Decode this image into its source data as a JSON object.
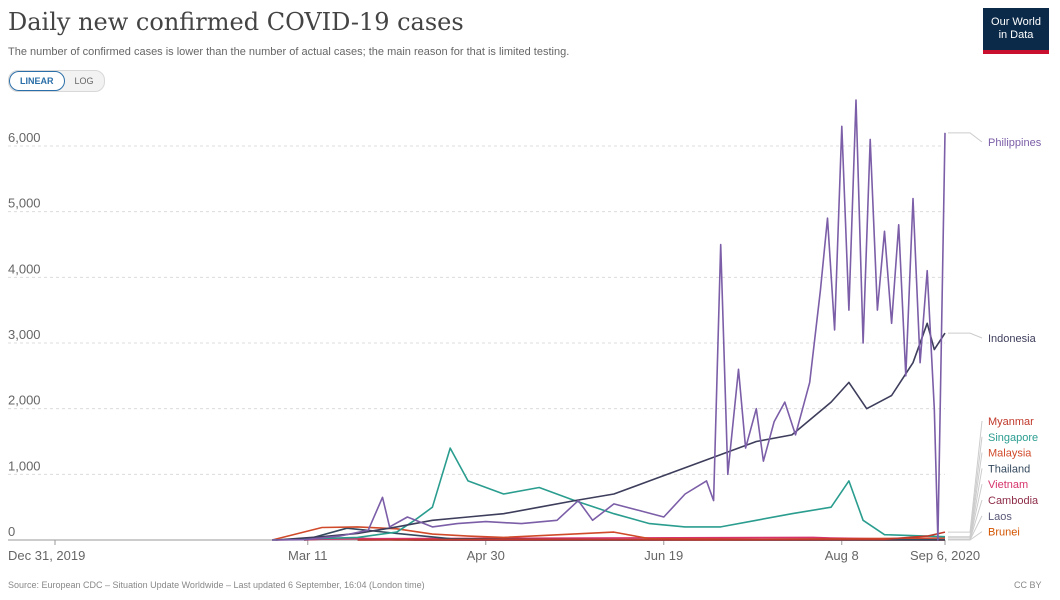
{
  "header": {
    "title": "Daily new confirmed COVID-19 cases",
    "subtitle": "The number of confirmed cases is lower than the number of actual cases; the main reason for that is limited testing."
  },
  "scale_toggle": {
    "linear_label": "LINEAR",
    "log_label": "LOG",
    "selected": "LINEAR"
  },
  "logo": {
    "line1": "Our World",
    "line2": "in Data"
  },
  "footer": {
    "source": "Source: European CDC – Situation Update Worldwide – Last updated 6 September, 16:04 (London time)",
    "license": "CC BY"
  },
  "chart_data": {
    "type": "line",
    "title": "Daily new confirmed COVID-19 cases",
    "xlabel": "",
    "ylabel": "",
    "x_range": [
      "2019-12-31",
      "2020-09-06"
    ],
    "ylim": [
      0,
      6700
    ],
    "y_ticks": [
      0,
      1000,
      2000,
      3000,
      4000,
      5000,
      6000
    ],
    "y_tick_labels": [
      "0",
      "1,000",
      "2,000",
      "3,000",
      "4,000",
      "5,000",
      "6,000"
    ],
    "x_ticks": [
      "2019-12-31",
      "2020-03-11",
      "2020-04-30",
      "2020-06-19",
      "2020-08-08",
      "2020-09-06"
    ],
    "x_tick_labels": [
      "Dec 31, 2019",
      "Mar 11",
      "Apr 30",
      "Jun 19",
      "Aug 8",
      "Sep 6, 2020"
    ],
    "grid": "horizontal-dotted",
    "legend": "right",
    "series": [
      {
        "name": "Philippines",
        "color": "#7b5ea7",
        "points": [
          [
            "2020-03-01",
            0
          ],
          [
            "2020-03-10",
            5
          ],
          [
            "2020-03-20",
            60
          ],
          [
            "2020-03-28",
            150
          ],
          [
            "2020-04-01",
            650
          ],
          [
            "2020-04-03",
            200
          ],
          [
            "2020-04-08",
            350
          ],
          [
            "2020-04-15",
            200
          ],
          [
            "2020-04-22",
            250
          ],
          [
            "2020-04-30",
            280
          ],
          [
            "2020-05-10",
            250
          ],
          [
            "2020-05-20",
            300
          ],
          [
            "2020-05-26",
            600
          ],
          [
            "2020-05-30",
            300
          ],
          [
            "2020-06-05",
            550
          ],
          [
            "2020-06-12",
            450
          ],
          [
            "2020-06-19",
            350
          ],
          [
            "2020-06-25",
            700
          ],
          [
            "2020-07-01",
            900
          ],
          [
            "2020-07-03",
            600
          ],
          [
            "2020-07-05",
            4500
          ],
          [
            "2020-07-07",
            1000
          ],
          [
            "2020-07-10",
            2600
          ],
          [
            "2020-07-12",
            1400
          ],
          [
            "2020-07-15",
            2000
          ],
          [
            "2020-07-17",
            1200
          ],
          [
            "2020-07-20",
            1800
          ],
          [
            "2020-07-23",
            2100
          ],
          [
            "2020-07-26",
            1600
          ],
          [
            "2020-07-30",
            2400
          ],
          [
            "2020-08-02",
            3800
          ],
          [
            "2020-08-04",
            4900
          ],
          [
            "2020-08-06",
            3200
          ],
          [
            "2020-08-08",
            6300
          ],
          [
            "2020-08-10",
            3500
          ],
          [
            "2020-08-12",
            6700
          ],
          [
            "2020-08-14",
            3000
          ],
          [
            "2020-08-16",
            6100
          ],
          [
            "2020-08-18",
            3500
          ],
          [
            "2020-08-20",
            4700
          ],
          [
            "2020-08-22",
            3300
          ],
          [
            "2020-08-24",
            4800
          ],
          [
            "2020-08-26",
            2500
          ],
          [
            "2020-08-28",
            5200
          ],
          [
            "2020-08-30",
            2700
          ],
          [
            "2020-09-01",
            4100
          ],
          [
            "2020-09-03",
            2000
          ],
          [
            "2020-09-04",
            0
          ],
          [
            "2020-09-06",
            6200
          ]
        ]
      },
      {
        "name": "Indonesia",
        "color": "#3d3d5c",
        "points": [
          [
            "2020-03-02",
            0
          ],
          [
            "2020-03-15",
            50
          ],
          [
            "2020-03-25",
            100
          ],
          [
            "2020-04-05",
            200
          ],
          [
            "2020-04-15",
            300
          ],
          [
            "2020-04-25",
            350
          ],
          [
            "2020-05-05",
            400
          ],
          [
            "2020-05-15",
            500
          ],
          [
            "2020-05-25",
            600
          ],
          [
            "2020-06-05",
            700
          ],
          [
            "2020-06-15",
            900
          ],
          [
            "2020-06-25",
            1100
          ],
          [
            "2020-07-05",
            1300
          ],
          [
            "2020-07-15",
            1500
          ],
          [
            "2020-07-25",
            1600
          ],
          [
            "2020-08-05",
            2100
          ],
          [
            "2020-08-10",
            2400
          ],
          [
            "2020-08-15",
            2000
          ],
          [
            "2020-08-22",
            2200
          ],
          [
            "2020-08-28",
            2700
          ],
          [
            "2020-09-01",
            3300
          ],
          [
            "2020-09-03",
            2900
          ],
          [
            "2020-09-06",
            3150
          ]
        ]
      },
      {
        "name": "Myanmar",
        "color": "#c0392b",
        "points": [
          [
            "2020-03-25",
            0
          ],
          [
            "2020-05-01",
            10
          ],
          [
            "2020-07-01",
            5
          ],
          [
            "2020-08-20",
            10
          ],
          [
            "2020-09-01",
            60
          ],
          [
            "2020-09-06",
            120
          ]
        ]
      },
      {
        "name": "Singapore",
        "color": "#2a9d8f",
        "points": [
          [
            "2020-03-01",
            0
          ],
          [
            "2020-03-25",
            40
          ],
          [
            "2020-04-05",
            120
          ],
          [
            "2020-04-10",
            300
          ],
          [
            "2020-04-15",
            500
          ],
          [
            "2020-04-20",
            1400
          ],
          [
            "2020-04-25",
            900
          ],
          [
            "2020-05-05",
            700
          ],
          [
            "2020-05-15",
            800
          ],
          [
            "2020-05-25",
            600
          ],
          [
            "2020-06-05",
            400
          ],
          [
            "2020-06-15",
            250
          ],
          [
            "2020-06-25",
            200
          ],
          [
            "2020-07-05",
            200
          ],
          [
            "2020-07-15",
            300
          ],
          [
            "2020-07-25",
            400
          ],
          [
            "2020-08-05",
            500
          ],
          [
            "2020-08-10",
            900
          ],
          [
            "2020-08-14",
            300
          ],
          [
            "2020-08-20",
            80
          ],
          [
            "2020-09-06",
            50
          ]
        ]
      },
      {
        "name": "Malaysia",
        "color": "#d04a2a",
        "points": [
          [
            "2020-03-01",
            0
          ],
          [
            "2020-03-15",
            190
          ],
          [
            "2020-03-25",
            200
          ],
          [
            "2020-04-05",
            170
          ],
          [
            "2020-04-15",
            90
          ],
          [
            "2020-04-25",
            60
          ],
          [
            "2020-05-05",
            40
          ],
          [
            "2020-06-05",
            120
          ],
          [
            "2020-06-15",
            20
          ],
          [
            "2020-07-15",
            10
          ],
          [
            "2020-09-06",
            30
          ]
        ]
      },
      {
        "name": "Thailand",
        "color": "#34495e",
        "points": [
          [
            "2020-03-10",
            0
          ],
          [
            "2020-03-22",
            180
          ],
          [
            "2020-04-05",
            100
          ],
          [
            "2020-04-20",
            20
          ],
          [
            "2020-06-01",
            5
          ],
          [
            "2020-09-06",
            5
          ]
        ]
      },
      {
        "name": "Vietnam",
        "color": "#d6336c",
        "points": [
          [
            "2020-03-01",
            0
          ],
          [
            "2020-03-25",
            20
          ],
          [
            "2020-07-31",
            40
          ],
          [
            "2020-08-05",
            30
          ],
          [
            "2020-09-06",
            5
          ]
        ]
      },
      {
        "name": "Cambodia",
        "color": "#8e2c48",
        "points": [
          [
            "2020-03-10",
            0
          ],
          [
            "2020-03-22",
            30
          ],
          [
            "2020-04-10",
            0
          ],
          [
            "2020-09-06",
            2
          ]
        ]
      },
      {
        "name": "Laos",
        "color": "#5a5a7a",
        "points": [
          [
            "2020-03-25",
            0
          ],
          [
            "2020-09-06",
            0
          ]
        ]
      },
      {
        "name": "Brunei",
        "color": "#d35400",
        "points": [
          [
            "2020-03-10",
            0
          ],
          [
            "2020-03-18",
            30
          ],
          [
            "2020-04-05",
            0
          ],
          [
            "2020-09-06",
            0
          ]
        ]
      }
    ]
  }
}
